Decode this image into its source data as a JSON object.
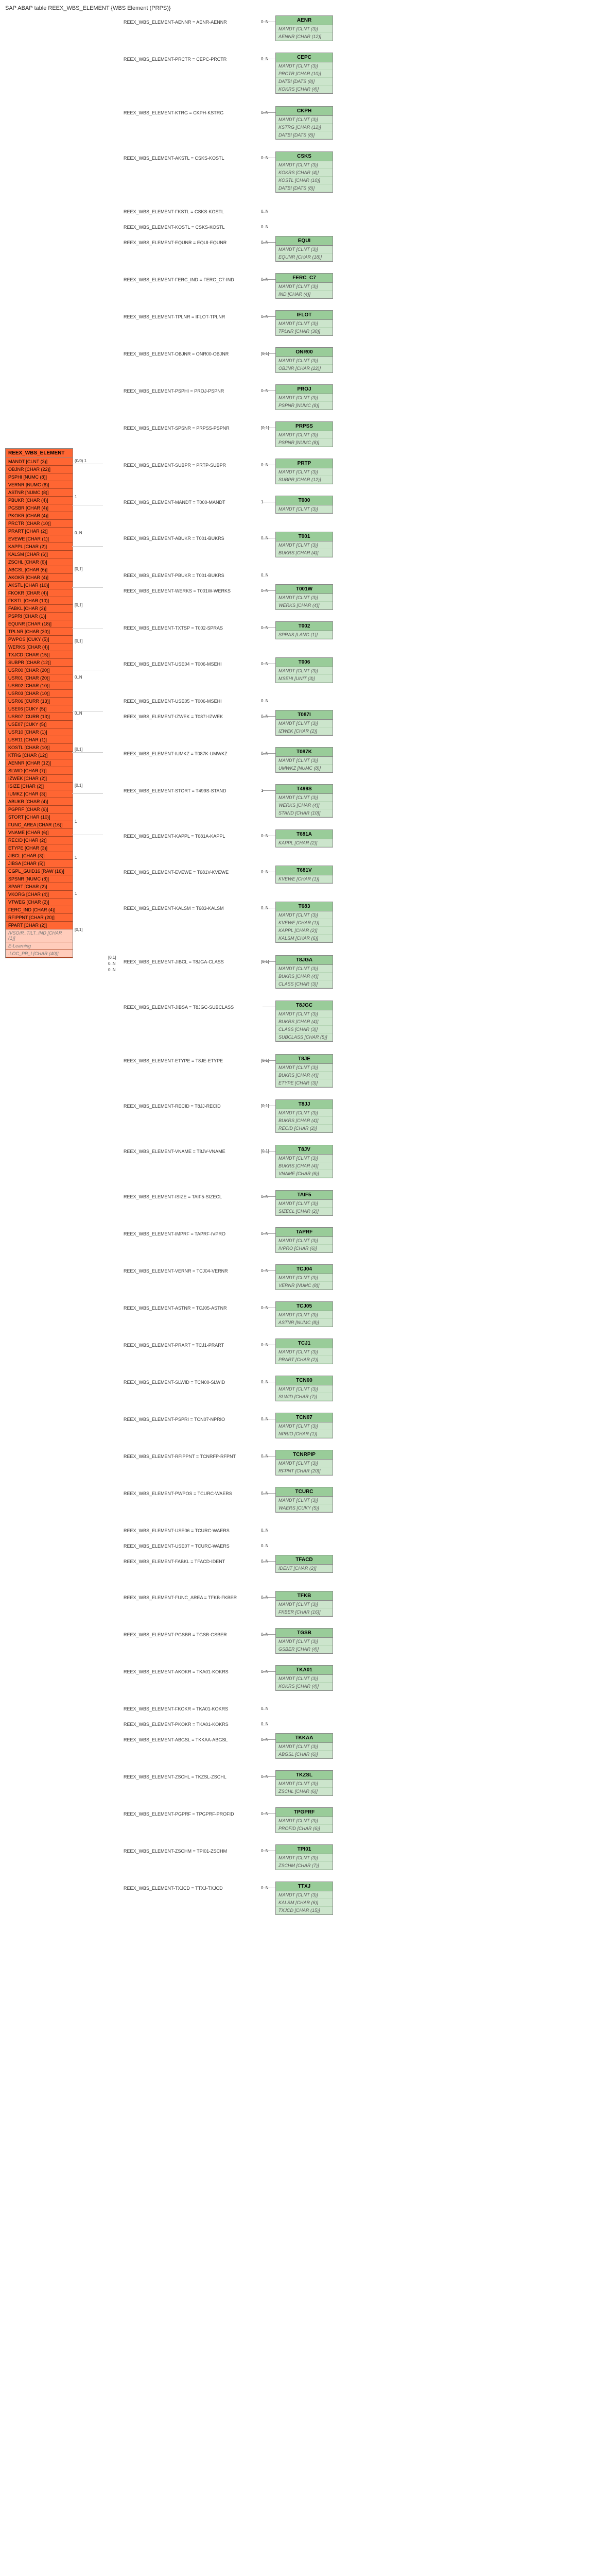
{
  "title": "SAP ABAP table REEX_WBS_ELEMENT {WBS Element (PRPS)}",
  "main_table": {
    "name": "REEX_WBS_ELEMENT",
    "fields": [
      "MANDT [CLNT (3)]",
      "OBJNR [CHAR (22)]",
      "PSPHI [NUMC (8)]",
      "VERNR [NUMC (8)]",
      "ASTNR [NUMC (8)]",
      "PBUKR [CHAR (4)]",
      "PGSBR [CHAR (4)]",
      "PKOKR [CHAR (4)]",
      "PRCTR [CHAR (10)]",
      "PRART [CHAR (2)]",
      "EVEWE [CHAR (1)]",
      "KAPPL [CHAR (2)]",
      "KALSM [CHAR (6)]",
      "ZSCHL [CHAR (6)]",
      "ABGSL [CHAR (6)]",
      "AKOKR [CHAR (4)]",
      "AKSTL [CHAR (10)]",
      "FKOKR [CHAR (4)]",
      "FKSTL [CHAR (10)]",
      "FABKL [CHAR (2)]",
      "PSPRI [CHAR (1)]",
      "EQUNR [CHAR (18)]",
      "TPLNR [CHAR (30)]",
      "PWPOS [CUKY (5)]",
      "WERKS [CHAR (4)]",
      "TXJCD [CHAR (15)]",
      "SUBPR [CHAR (12)]",
      "USR00 [CHAR (20)]",
      "USR01 [CHAR (20)]",
      "USR02 [CHAR (10)]",
      "USR03 [CHAR (10)]",
      "USR06 [CURR (13)]",
      "USE06 [CUKY (5)]",
      "USR07 [CURR (13)]",
      "USE07 [CUKY (5)]",
      "USR10 [CHAR (1)]",
      "USR11 [CHAR (1)]",
      "KOSTL [CHAR (10)]",
      "KTRG [CHAR (12)]",
      "AENNR [CHAR (12)]",
      "SLWID [CHAR (7)]",
      "IZWEK [CHAR (2)]",
      "ISIZE [CHAR (2)]",
      "IUMKZ [CHAR (3)]",
      "ABUKR [CHAR (4)]",
      "PGPRF [CHAR (6)]",
      "STORT [CHAR (10)]",
      "FUNC_AREA [CHAR (16)]",
      "VNAME [CHAR (6)]",
      "RECID [CHAR (2)]",
      "ETYPE [CHAR (3)]",
      "JIBCL [CHAR (3)]",
      "JIBSA [CHAR (5)]",
      "CGPL_GUID16 [RAW (16)]",
      "SPSNR [NUMC (8)]",
      "SPART [CHAR (2)]",
      "VKORG [CHAR (4)]",
      "VTWEG [CHAR (2)]",
      "FERC_IND [CHAR (4)]",
      "RFIPPNT [CHAR (20)]",
      "FPART [CHAR (2)]"
    ],
    "muted_fields": [
      "/VSO/R_TILT_IND [CHAR (1)]",
      "E-Learning",
      ".LOC_PR_I [CHAR (40)]"
    ]
  },
  "relationships": [
    {
      "label": "REEX_WBS_ELEMENT-AENNR = AENR-AENNR",
      "target": "AENR",
      "rows": [
        "MANDT [CLNT (3)]",
        "AENNR [CHAR (12)]"
      ],
      "card": "0..N"
    },
    {
      "label": "REEX_WBS_ELEMENT-PRCTR = CEPC-PRCTR",
      "target": "CEPC",
      "rows": [
        "MANDT [CLNT (3)]",
        "PRCTR [CHAR (10)]",
        "DATBI [DATS (8)]",
        "KOKRS [CHAR (4)]"
      ],
      "card": "0..N"
    },
    {
      "label": "REEX_WBS_ELEMENT-KTRG = CKPH-KSTRG",
      "target": "CKPH",
      "rows": [
        "MANDT [CLNT (3)]",
        "KSTRG [CHAR (12)]",
        "DATBI [DATS (8)]"
      ],
      "card": "0..N"
    },
    {
      "label": "REEX_WBS_ELEMENT-AKSTL = CSKS-KOSTL",
      "target": "CSKS",
      "rows": [
        "MANDT [CLNT (3)]",
        "KOKRS [CHAR (4)]",
        "KOSTL [CHAR (10)]",
        "DATBI [DATS (8)]"
      ],
      "card": "0..N"
    },
    {
      "label": "REEX_WBS_ELEMENT-FKSTL = CSKS-KOSTL",
      "target": "",
      "rows": [],
      "card": "0..N"
    },
    {
      "label": "REEX_WBS_ELEMENT-KOSTL = CSKS-KOSTL",
      "target": "",
      "rows": [],
      "card": "0..N"
    },
    {
      "label": "REEX_WBS_ELEMENT-EQUNR = EQUI-EQUNR",
      "target": "EQUI",
      "rows": [
        "MANDT [CLNT (3)]",
        "EQUNR [CHAR (18)]"
      ],
      "card": "0..N"
    },
    {
      "label": "REEX_WBS_ELEMENT-FERC_IND = FERC_C7-IND",
      "target": "FERC_C7",
      "rows": [
        "MANDT [CLNT (3)]",
        "IND [CHAR (4)]"
      ],
      "card": "0..N"
    },
    {
      "label": "REEX_WBS_ELEMENT-TPLNR = IFLOT-TPLNR",
      "target": "IFLOT",
      "rows": [
        "MANDT [CLNT (3)]",
        "TPLNR [CHAR (30)]"
      ],
      "card": "0..N"
    },
    {
      "label": "REEX_WBS_ELEMENT-OBJNR = ONR00-OBJNR",
      "target": "ONR00",
      "rows": [
        "MANDT [CLNT (3)]",
        "OBJNR [CHAR (22)]"
      ],
      "card": "[0,1]"
    },
    {
      "label": "REEX_WBS_ELEMENT-PSPHI = PROJ-PSPNR",
      "target": "PROJ",
      "rows": [
        "MANDT [CLNT (3)]",
        "PSPNR [NUMC (8)]"
      ],
      "card": "0..N"
    },
    {
      "label": "REEX_WBS_ELEMENT-SPSNR = PRPSS-PSPNR",
      "target": "PRPSS",
      "rows": [
        "MANDT [CLNT (3)]",
        "PSPNR [NUMC (8)]"
      ],
      "card": "[0,1]"
    },
    {
      "label": "REEX_WBS_ELEMENT-SUBPR = PRTP-SUBPR",
      "target": "PRTP",
      "rows": [
        "MANDT [CLNT (3)]",
        "SUBPR [CHAR (12)]"
      ],
      "card": "0..N"
    },
    {
      "label": "REEX_WBS_ELEMENT-MANDT = T000-MANDT",
      "target": "T000",
      "rows": [
        "MANDT [CLNT (3)]"
      ],
      "card": "1"
    },
    {
      "label": "REEX_WBS_ELEMENT-ABUKR = T001-BUKRS",
      "target": "T001",
      "rows": [
        "MANDT [CLNT (3)]",
        "BUKRS [CHAR (4)]"
      ],
      "card": "0..N"
    },
    {
      "label": "REEX_WBS_ELEMENT-PBUKR = T001-BUKRS",
      "target": "",
      "rows": [],
      "card": "0..N"
    },
    {
      "label": "REEX_WBS_ELEMENT-WERKS = T001W-WERKS",
      "target": "T001W",
      "rows": [
        "MANDT [CLNT (3)]",
        "WERKS [CHAR (4)]"
      ],
      "card": "0..N"
    },
    {
      "label": "REEX_WBS_ELEMENT-TXTSP = T002-SPRAS",
      "target": "T002",
      "rows": [
        "SPRAS [LANG (1)]"
      ],
      "card": "0..N"
    },
    {
      "label": "REEX_WBS_ELEMENT-USE04 = T006-MSEHI",
      "target": "T006",
      "rows": [
        "MANDT [CLNT (3)]",
        "MSEHI [UNIT (3)]"
      ],
      "card": "0..N"
    },
    {
      "label": "REEX_WBS_ELEMENT-USE05 = T006-MSEHI",
      "target": "",
      "rows": [],
      "card": "0..N"
    },
    {
      "label": "REEX_WBS_ELEMENT-IZWEK = T087I-IZWEK",
      "target": "T087I",
      "rows": [
        "MANDT [CLNT (3)]",
        "IZWEK [CHAR (2)]"
      ],
      "card": "0..N"
    },
    {
      "label": "REEX_WBS_ELEMENT-IUMKZ = T087K-UMWKZ",
      "target": "T087K",
      "rows": [
        "MANDT [CLNT (3)]",
        "UMWKZ [NUMC (8)]"
      ],
      "card": "0..N"
    },
    {
      "label": "REEX_WBS_ELEMENT-STORT = T499S-STAND",
      "target": "T499S",
      "rows": [
        "MANDT [CLNT (3)]",
        "WERKS [CHAR (4)]",
        "STAND [CHAR (10)]"
      ],
      "card": "1"
    },
    {
      "label": "REEX_WBS_ELEMENT-KAPPL = T681A-KAPPL",
      "target": "T681A",
      "rows": [
        "KAPPL [CHAR (2)]"
      ],
      "card": "0..N"
    },
    {
      "label": "REEX_WBS_ELEMENT-EVEWE = T681V-KVEWE",
      "target": "T681V",
      "rows": [
        "KVEWE [CHAR (1)]"
      ],
      "card": "0..N"
    },
    {
      "label": "REEX_WBS_ELEMENT-KALSM = T683-KALSM",
      "target": "T683",
      "rows": [
        "MANDT [CLNT (3)]",
        "KVEWE [CHAR (1)]",
        "KAPPL [CHAR (2)]",
        "KALSM [CHAR (6)]"
      ],
      "card": "0..N"
    },
    {
      "label": "REEX_WBS_ELEMENT-JIBCL = T8JGA-CLASS",
      "target": "T8JGA",
      "rows": [
        "MANDT [CLNT (3)]",
        "BUKRS [CHAR (4)]",
        "CLASS [CHAR (3)]"
      ],
      "card": "[0,1]",
      "side_cards": [
        "[0,1]",
        "0..N",
        "0..N"
      ]
    },
    {
      "label": "REEX_WBS_ELEMENT-JIBSA = T8JGC-SUBCLASS",
      "target": "T8JGC",
      "rows": [
        "MANDT [CLNT (3)]",
        "BUKRS [CHAR (4)]",
        "CLASS [CHAR (3)]",
        "SUBCLASS [CHAR (5)]"
      ],
      "card": ""
    },
    {
      "label": "REEX_WBS_ELEMENT-ETYPE = T8JE-ETYPE",
      "target": "T8JE",
      "rows": [
        "MANDT [CLNT (3)]",
        "BUKRS [CHAR (4)]",
        "ETYPE [CHAR (3)]"
      ],
      "card": "[0,1]"
    },
    {
      "label": "REEX_WBS_ELEMENT-RECID = T8JJ-RECID",
      "target": "T8JJ",
      "rows": [
        "MANDT [CLNT (3)]",
        "BUKRS [CHAR (4)]",
        "RECID [CHAR (2)]"
      ],
      "card": "[0,1]"
    },
    {
      "label": "REEX_WBS_ELEMENT-VNAME = T8JV-VNAME",
      "target": "T8JV",
      "rows": [
        "MANDT [CLNT (3)]",
        "BUKRS [CHAR (4)]",
        "VNAME [CHAR (6)]"
      ],
      "card": "[0,1]"
    },
    {
      "label": "REEX_WBS_ELEMENT-ISIZE = TAIF5-SIZECL",
      "target": "TAIF5",
      "rows": [
        "MANDT [CLNT (3)]",
        "SIZECL [CHAR (2)]"
      ],
      "card": "0..N"
    },
    {
      "label": "REEX_WBS_ELEMENT-IMPRF = TAPRF-IVPRO",
      "target": "TAPRF",
      "rows": [
        "MANDT [CLNT (3)]",
        "IVPRO [CHAR (6)]"
      ],
      "card": "0..N"
    },
    {
      "label": "REEX_WBS_ELEMENT-VERNR = TCJ04-VERNR",
      "target": "TCJ04",
      "rows": [
        "MANDT [CLNT (3)]",
        "VERNR [NUMC (8)]"
      ],
      "card": "0..N"
    },
    {
      "label": "REEX_WBS_ELEMENT-ASTNR = TCJ05-ASTNR",
      "target": "TCJ05",
      "rows": [
        "MANDT [CLNT (3)]",
        "ASTNR [NUMC (8)]"
      ],
      "card": "0..N"
    },
    {
      "label": "REEX_WBS_ELEMENT-PRART = TCJ1-PRART",
      "target": "TCJ1",
      "rows": [
        "MANDT [CLNT (3)]",
        "PRART [CHAR (2)]"
      ],
      "card": "0..N"
    },
    {
      "label": "REEX_WBS_ELEMENT-SLWID = TCN00-SLWID",
      "target": "TCN00",
      "rows": [
        "MANDT [CLNT (3)]",
        "SLWID [CHAR (7)]"
      ],
      "card": "0..N"
    },
    {
      "label": "REEX_WBS_ELEMENT-PSPRI = TCN07-NPRIO",
      "target": "TCN07",
      "rows": [
        "MANDT [CLNT (3)]",
        "NPRIO [CHAR (1)]"
      ],
      "card": "0..N"
    },
    {
      "label": "REEX_WBS_ELEMENT-RFIPPNT = TCNRFP-RFPNT",
      "target": "TCNRPIP",
      "rows": [
        "MANDT [CLNT (3)]",
        "RFPNT [CHAR (20)]"
      ],
      "card": "0..N"
    },
    {
      "label": "REEX_WBS_ELEMENT-PWPOS = TCURC-WAERS",
      "target": "TCURC",
      "rows": [
        "MANDT [CLNT (3)]",
        "WAERS [CUKY (5)]"
      ],
      "card": "0..N"
    },
    {
      "label": "REEX_WBS_ELEMENT-USE06 = TCURC-WAERS",
      "target": "",
      "rows": [],
      "card": "0..N"
    },
    {
      "label": "REEX_WBS_ELEMENT-USE07 = TCURC-WAERS",
      "target": "",
      "rows": [],
      "card": "0..N"
    },
    {
      "label": "REEX_WBS_ELEMENT-FABKL = TFACD-IDENT",
      "target": "TFACD",
      "rows": [
        "IDENT [CHAR (2)]"
      ],
      "card": "0..N"
    },
    {
      "label": "REEX_WBS_ELEMENT-FUNC_AREA = TFKB-FKBER",
      "target": "TFKB",
      "rows": [
        "MANDT [CLNT (3)]",
        "FKBER [CHAR (16)]"
      ],
      "card": "0..N"
    },
    {
      "label": "REEX_WBS_ELEMENT-PGSBR = TGSB-GSBER",
      "target": "TGSB",
      "rows": [
        "MANDT [CLNT (3)]",
        "GSBER [CHAR (4)]"
      ],
      "card": "0..N"
    },
    {
      "label": "REEX_WBS_ELEMENT-AKOKR = TKA01-KOKRS",
      "target": "TKA01",
      "rows": [
        "MANDT [CLNT (3)]",
        "KOKRS [CHAR (4)]"
      ],
      "card": "0..N"
    },
    {
      "label": "REEX_WBS_ELEMENT-FKOKR = TKA01-KOKRS",
      "target": "",
      "rows": [],
      "card": "0..N"
    },
    {
      "label": "REEX_WBS_ELEMENT-PKOKR = TKA01-KOKRS",
      "target": "",
      "rows": [],
      "card": "0..N"
    },
    {
      "label": "REEX_WBS_ELEMENT-ABGSL = TKKAA-ABGSL",
      "target": "TKKAA",
      "rows": [
        "MANDT [CLNT (3)]",
        "ABGSL [CHAR (6)]"
      ],
      "card": "0..N"
    },
    {
      "label": "REEX_WBS_ELEMENT-ZSCHL = TKZSL-ZSCHL",
      "target": "TKZSL",
      "rows": [
        "MANDT [CLNT (3)]",
        "ZSCHL [CHAR (6)]"
      ],
      "card": "0..N"
    },
    {
      "label": "REEX_WBS_ELEMENT-PGPRF = TPGPRF-PROFID",
      "target": "TPGPRF",
      "rows": [
        "MANDT [CLNT (3)]",
        "PROFID [CHAR (6)]"
      ],
      "card": "0..N"
    },
    {
      "label": "REEX_WBS_ELEMENT-ZSCHM = TPI01-ZSCHM",
      "target": "TPI01",
      "rows": [
        "MANDT [CLNT (3)]",
        "ZSCHM [CHAR (7)]"
      ],
      "card": "0..N"
    },
    {
      "label": "REEX_WBS_ELEMENT-TXJCD = TTXJ-TXJCD",
      "target": "TTXJ",
      "rows": [
        "MANDT [CLNT (3)]",
        "KALSM [CHAR (6)]",
        "TXJCD [CHAR (15)]"
      ],
      "card": "0..N"
    }
  ],
  "side_labels_near_main": [
    "(0/0) 1",
    "1",
    "0..N",
    "[0,1]",
    "[0,1]",
    "[0,1]",
    "0..N",
    "0..N",
    "[0,1]",
    "[0,1]",
    "1",
    "1",
    "1",
    "[0,1]"
  ],
  "colors": {
    "main_bg": "#ff6633",
    "target_bg": "#cce5cc",
    "target_header_bg": "#99cc99",
    "line": "#aaaaaa"
  }
}
